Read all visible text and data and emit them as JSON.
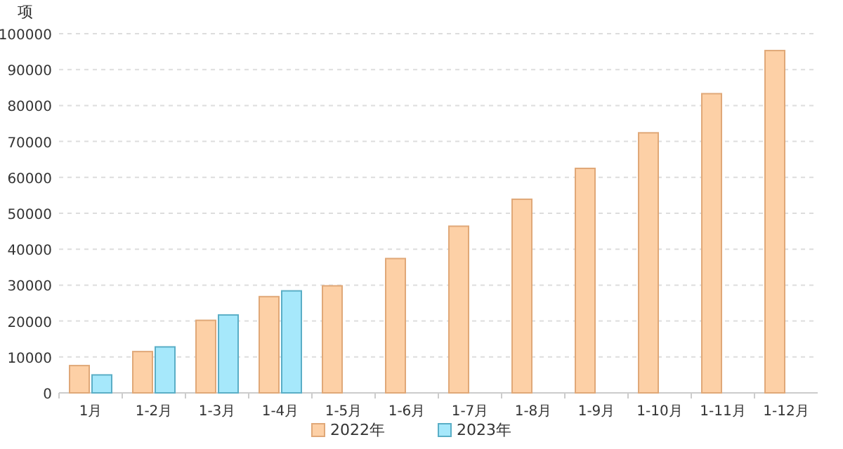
{
  "chart_data": {
    "type": "bar",
    "ylabel": "项",
    "categories": [
      "1月",
      "1-2月",
      "1-3月",
      "1-4月",
      "1-5月",
      "1-6月",
      "1-7月",
      "1-8月",
      "1-9月",
      "1-10月",
      "1-11月",
      "1-12月"
    ],
    "series": [
      {
        "name": "2022年",
        "color": "#fdd0a6",
        "values": [
          7600,
          11500,
          20200,
          26800,
          29800,
          37400,
          46400,
          53900,
          62500,
          72400,
          83300,
          95300
        ]
      },
      {
        "name": "2023年",
        "color": "#a6e8fb",
        "values": [
          5000,
          12800,
          21700,
          28400,
          null,
          null,
          null,
          null,
          null,
          null,
          null,
          null
        ]
      }
    ],
    "ylim": [
      0,
      100000
    ],
    "yticks": [
      0,
      10000,
      20000,
      30000,
      40000,
      50000,
      60000,
      70000,
      80000,
      90000,
      100000
    ],
    "grid": "y",
    "legend": "bottom"
  }
}
